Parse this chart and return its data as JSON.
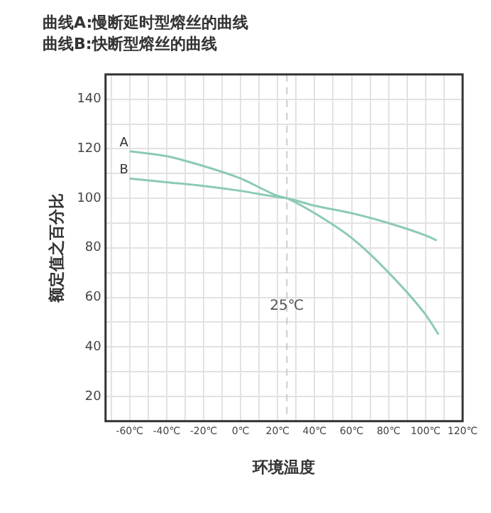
{
  "chart_data": {
    "type": "line",
    "title": "曲线A:慢断延时型熔丝的曲线",
    "subtitle": "曲线B:快断型熔丝的曲线",
    "xlabel": "环境温度",
    "ylabel": "额定值之百分比",
    "xlim": [
      -73,
      120
    ],
    "ylim": [
      10,
      150
    ],
    "xticks": [
      {
        "value": -70,
        "label": null
      },
      {
        "value": -60,
        "label": "-60℃"
      },
      {
        "value": -50,
        "label": null
      },
      {
        "value": -40,
        "label": "-40℃"
      },
      {
        "value": -30,
        "label": null
      },
      {
        "value": -20,
        "label": "-20℃"
      },
      {
        "value": -10,
        "label": null
      },
      {
        "value": 0,
        "label": "0℃"
      },
      {
        "value": 10,
        "label": null
      },
      {
        "value": 20,
        "label": "20℃"
      },
      {
        "value": 30,
        "label": null
      },
      {
        "value": 40,
        "label": "40℃"
      },
      {
        "value": 50,
        "label": null
      },
      {
        "value": 60,
        "label": "60℃"
      },
      {
        "value": 70,
        "label": null
      },
      {
        "value": 80,
        "label": "80℃"
      },
      {
        "value": 90,
        "label": null
      },
      {
        "value": 100,
        "label": "100℃"
      },
      {
        "value": 110,
        "label": null
      },
      {
        "value": 120,
        "label": "120℃"
      }
    ],
    "yticks": [
      {
        "value": 10,
        "label": null
      },
      20,
      {
        "value": 30,
        "label": null
      },
      40,
      {
        "value": 50,
        "label": null
      },
      60,
      {
        "value": 70,
        "label": null
      },
      80,
      {
        "value": 90,
        "label": null
      },
      100,
      {
        "value": 110,
        "label": null
      },
      120,
      {
        "value": 130,
        "label": null
      },
      140,
      {
        "value": 150,
        "label": null
      }
    ],
    "grid": true,
    "legend": false,
    "marker": "none",
    "line_style": "solid",
    "series": [
      {
        "name": "A",
        "color": "#8ccab6",
        "x": [
          -60,
          -40,
          -20,
          0,
          20,
          25,
          40,
          60,
          80,
          100,
          107
        ],
        "values": [
          119,
          117,
          113,
          108,
          101,
          100,
          94,
          84,
          70,
          53,
          45
        ]
      },
      {
        "name": "B",
        "color": "#8ccab6",
        "x": [
          -60,
          -40,
          -20,
          0,
          20,
          25,
          40,
          60,
          80,
          100,
          106
        ],
        "values": [
          108,
          106.5,
          105,
          103,
          100.5,
          100,
          97,
          94,
          90,
          85,
          83
        ]
      }
    ],
    "ref_lines": [
      {
        "axis": "x",
        "value": 25,
        "label": "25℃",
        "line_style": "dashed",
        "color": "#cccccc"
      }
    ]
  }
}
